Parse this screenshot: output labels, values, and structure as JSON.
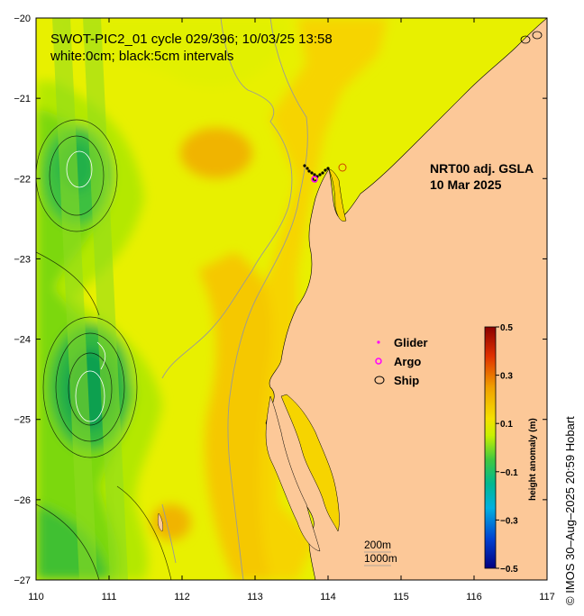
{
  "title_line1": "SWOT-PIC2_01 cycle 029/396; 10/03/25 13:58",
  "title_line2": "white:0cm; black:5cm intervals",
  "product_line1": "NRT00 adj. GSLA",
  "product_line2": "10 Mar 2025",
  "legend": {
    "glider": "Glider",
    "argo": "Argo",
    "ship": "Ship",
    "glider_color": "#ff00ff",
    "argo_color": "#ff00ff",
    "ship_color": "#000000"
  },
  "depth_labels": {
    "a": "200m",
    "b": "1000m"
  },
  "colorbar": {
    "label": "height anomaly (m)",
    "ticks": [
      "0.5",
      "0.3",
      "0.1",
      "−0.1",
      "−0.3",
      "−0.5"
    ],
    "tick_values": [
      0.5,
      0.3,
      0.1,
      -0.1,
      -0.3,
      -0.5
    ],
    "min": -0.5,
    "max": 0.5
  },
  "credit": "© IMOS 30–Aug–2025 20:59 Hobart",
  "axes": {
    "x_ticks": [
      "110",
      "111",
      "112",
      "113",
      "114",
      "115",
      "116",
      "117"
    ],
    "y_ticks": [
      "−20",
      "−21",
      "−22",
      "−23",
      "−24",
      "−25",
      "−26",
      "−27"
    ],
    "lon_range": [
      110,
      117
    ],
    "lat_range": [
      -27,
      -20
    ]
  },
  "colors": {
    "land": "#fcc898",
    "ocean_base": "#dff000",
    "ocean_warm": "#f7d400",
    "ocean_hot": "#f0b000",
    "ocean_cool": "#a8e400",
    "ocean_green": "#4cc830",
    "ocean_dark_green": "#18a040"
  }
}
